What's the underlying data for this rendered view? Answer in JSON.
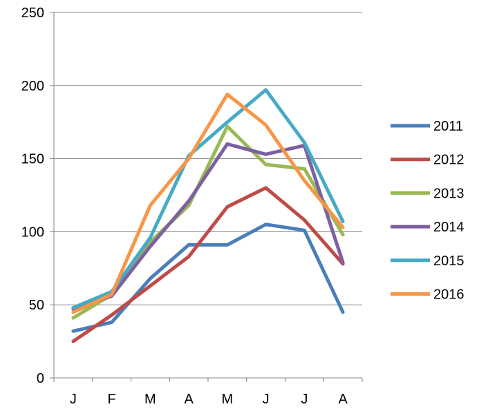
{
  "chart_data": {
    "type": "line",
    "title": "",
    "xlabel": "",
    "ylabel": "",
    "categories": [
      "J",
      "F",
      "M",
      "A",
      "M",
      "J",
      "J",
      "A"
    ],
    "ylim": [
      0,
      250
    ],
    "yticks": [
      0,
      50,
      100,
      150,
      200,
      250
    ],
    "grid": "horizontal",
    "legend_position": "right",
    "series": [
      {
        "name": "2011",
        "color": "#4a7ebb",
        "values": [
          32,
          38,
          68,
          91,
          91,
          105,
          101,
          45
        ]
      },
      {
        "name": "2012",
        "color": "#be4b48",
        "values": [
          25,
          43,
          63,
          83,
          117,
          130,
          108,
          78
        ]
      },
      {
        "name": "2013",
        "color": "#98b954",
        "values": [
          41,
          57,
          93,
          118,
          172,
          146,
          143,
          98
        ]
      },
      {
        "name": "2014",
        "color": "#7d60a0",
        "values": [
          47,
          56,
          90,
          121,
          160,
          153,
          159,
          79
        ]
      },
      {
        "name": "2015",
        "color": "#46aac5",
        "values": [
          48,
          59,
          96,
          152,
          175,
          197,
          161,
          107
        ]
      },
      {
        "name": "2016",
        "color": "#f79646",
        "values": [
          45,
          57,
          118,
          150,
          194,
          173,
          135,
          103
        ]
      }
    ]
  }
}
